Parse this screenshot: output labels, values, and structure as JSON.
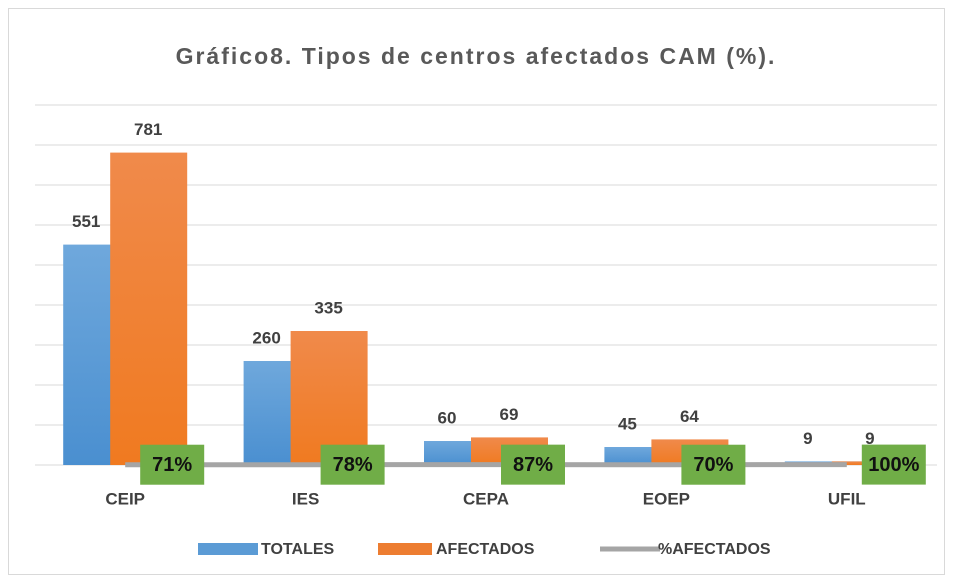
{
  "chart_data": {
    "type": "bar",
    "title": "Gráfico8. Tipos de centros afectados CAM (%).",
    "categories": [
      "CEIP",
      "IES",
      "CEPA",
      "EOEP",
      "UFIL"
    ],
    "series": [
      {
        "name": "TOTALES",
        "color": "#5b9bd5",
        "values": [
          551,
          260,
          60,
          45,
          9
        ]
      },
      {
        "name": "AFECTADOS",
        "color": "#ed7d31",
        "values": [
          781,
          335,
          69,
          64,
          9
        ]
      },
      {
        "name": "%AFECTADOS",
        "type": "line",
        "color": "#a5a5a5",
        "label_color": "#70ad47",
        "values": [
          0.71,
          0.78,
          0.87,
          0.7,
          1.0
        ],
        "value_labels": [
          "71%",
          "78%",
          "87%",
          "70%",
          "100%"
        ]
      }
    ],
    "ylim": [
      0,
      900
    ],
    "yticks": [
      0,
      100,
      200,
      300,
      400,
      500,
      600,
      700,
      800,
      900
    ],
    "grid": true,
    "legend": "bottom"
  }
}
